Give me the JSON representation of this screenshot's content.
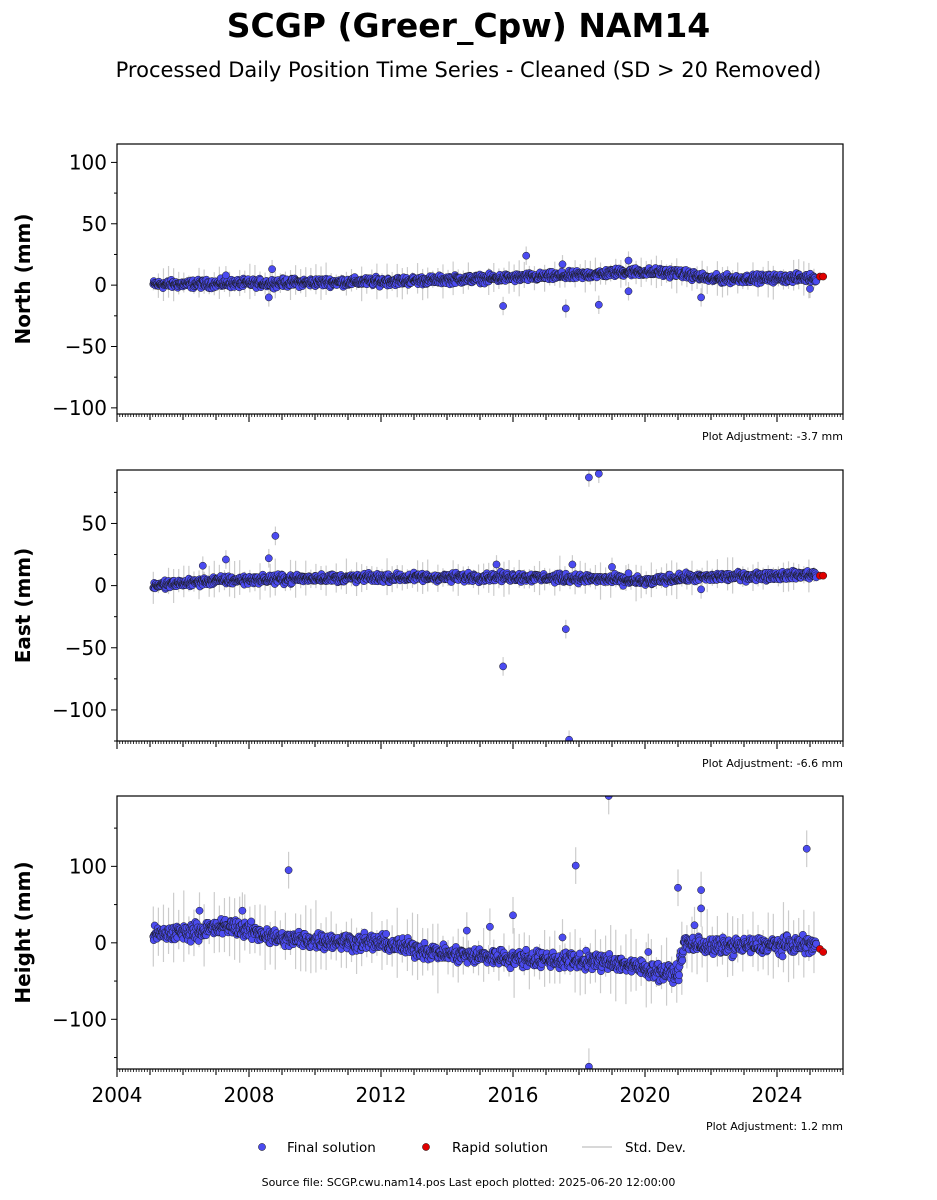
{
  "title": "SCGP (Greer_Cpw) NAM14",
  "subtitle": "Processed Daily Position Time Series - Cleaned (SD > 20 Removed)",
  "footer": "Source file: SCGP.cwu.nam14.pos  Last epoch plotted: 2025-06-20 12:00:00",
  "colors": {
    "final": "#4b4bf0",
    "rapid": "#e00000",
    "stddev": "#cccccc",
    "marker_edge": "#1a1a1a"
  },
  "chart_data": [
    {
      "type": "scatter",
      "ylabel": "North (mm)",
      "xlim": [
        2004.0,
        2026.0
      ],
      "ylim": [
        -105,
        115
      ],
      "yticks": [
        100,
        50,
        0,
        -50,
        -100
      ],
      "ytick_labels": [
        "100",
        "50",
        "0",
        "−50",
        "−100"
      ],
      "adjustment": "Plot Adjustment: -3.7 mm",
      "trend": [
        [
          2005.1,
          0.5
        ],
        [
          2008,
          1.5
        ],
        [
          2012,
          3
        ],
        [
          2016,
          6
        ],
        [
          2018,
          8
        ],
        [
          2019.5,
          11
        ],
        [
          2021,
          10
        ],
        [
          2022,
          5
        ],
        [
          2025.2,
          6
        ]
      ],
      "spread": 2.5,
      "outliers": [
        [
          2007.3,
          8
        ],
        [
          2008.6,
          -10
        ],
        [
          2008.7,
          13
        ],
        [
          2015.7,
          -17
        ],
        [
          2016.4,
          24
        ],
        [
          2017.5,
          17
        ],
        [
          2017.6,
          -19
        ],
        [
          2018.6,
          -16
        ],
        [
          2019.5,
          20
        ],
        [
          2019.5,
          -5
        ],
        [
          2021.7,
          -10
        ],
        [
          2025.0,
          -3
        ]
      ],
      "rapid": [
        [
          2025.3,
          7
        ],
        [
          2025.4,
          7
        ]
      ],
      "legend": "bottom-center"
    },
    {
      "type": "scatter",
      "ylabel": "East (mm)",
      "xlim": [
        2004.0,
        2026.0
      ],
      "ylim": [
        -125,
        93
      ],
      "yticks": [
        50,
        0,
        -50,
        -100
      ],
      "ytick_labels": [
        "50",
        "0",
        "−50",
        "−100"
      ],
      "adjustment": "Plot Adjustment: -6.6 mm",
      "trend": [
        [
          2005.1,
          0
        ],
        [
          2007,
          4
        ],
        [
          2010,
          6
        ],
        [
          2016,
          7
        ],
        [
          2019,
          5
        ],
        [
          2020,
          3
        ],
        [
          2021,
          6
        ],
        [
          2025.2,
          9
        ]
      ],
      "spread": 2.5,
      "outliers": [
        [
          2006.6,
          16
        ],
        [
          2007.3,
          21
        ],
        [
          2008.6,
          22
        ],
        [
          2008.8,
          40
        ],
        [
          2015.5,
          17
        ],
        [
          2015.7,
          -65
        ],
        [
          2017.8,
          17
        ],
        [
          2017.6,
          -35
        ],
        [
          2017.7,
          -124
        ],
        [
          2018.3,
          87
        ],
        [
          2018.6,
          90
        ],
        [
          2019.0,
          15
        ],
        [
          2019.5,
          10
        ],
        [
          2021.7,
          -3
        ]
      ],
      "rapid": [
        [
          2025.3,
          8
        ],
        [
          2025.4,
          8
        ]
      ]
    },
    {
      "type": "scatter",
      "ylabel": "Height (mm)",
      "xlim": [
        2004.0,
        2026.0
      ],
      "ylim": [
        -165,
        192
      ],
      "yticks": [
        100,
        0,
        -100
      ],
      "ytick_labels": [
        "100",
        "0",
        "−100"
      ],
      "adjustment": "Plot Adjustment: 1.2 mm",
      "xticks": [
        2004,
        2008,
        2012,
        2016,
        2020,
        2024
      ],
      "xtick_labels": [
        "2004",
        "2008",
        "2012",
        "2016",
        "2020",
        "2024"
      ],
      "trend": [
        [
          2005.1,
          10
        ],
        [
          2006.5,
          16
        ],
        [
          2007.5,
          22
        ],
        [
          2009,
          5
        ],
        [
          2012,
          0
        ],
        [
          2014,
          -15
        ],
        [
          2016,
          -20
        ],
        [
          2019,
          -25
        ],
        [
          2020.5,
          -38
        ],
        [
          2021.0,
          -40
        ],
        [
          2021.2,
          0
        ],
        [
          2022,
          -5
        ],
        [
          2025.2,
          -2
        ]
      ],
      "spread": 8,
      "outliers": [
        [
          2006.5,
          42
        ],
        [
          2007.8,
          42
        ],
        [
          2009.2,
          95
        ],
        [
          2014.6,
          16
        ],
        [
          2015.3,
          21
        ],
        [
          2016.0,
          36
        ],
        [
          2017.5,
          7
        ],
        [
          2017.9,
          101
        ],
        [
          2018.3,
          -162
        ],
        [
          2018.9,
          192
        ],
        [
          2020.1,
          -12
        ],
        [
          2021.0,
          72
        ],
        [
          2021.7,
          69
        ],
        [
          2021.7,
          45
        ],
        [
          2021.5,
          23
        ],
        [
          2024.9,
          123
        ]
      ],
      "rapid": [
        [
          2025.3,
          -8
        ],
        [
          2025.4,
          -12
        ]
      ]
    }
  ],
  "legend": {
    "items": [
      {
        "label": "Final solution",
        "kind": "final"
      },
      {
        "label": "Rapid solution",
        "kind": "rapid"
      },
      {
        "label": "Std. Dev.",
        "kind": "stddev"
      }
    ]
  }
}
